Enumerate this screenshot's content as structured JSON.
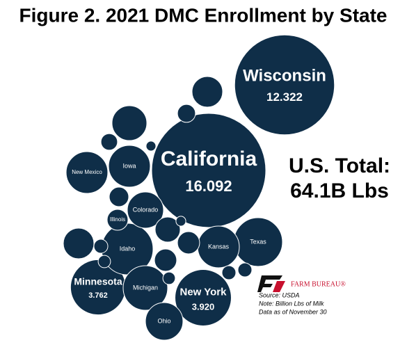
{
  "chart_data": {
    "type": "packed-bubble",
    "title": "Figure 2. 2021 DMC Enrollment by State",
    "color": "#0f2e48",
    "categories": [
      "California",
      "Wisconsin",
      "New York",
      "Minnesota",
      "Idaho",
      "Texas",
      "Michigan",
      "Kansas",
      "Iowa",
      "New Mexico",
      "Ohio",
      "Colorado",
      "Illinois",
      null,
      null,
      null,
      null,
      null,
      null,
      null,
      null,
      null,
      null,
      null,
      null,
      null,
      null,
      null,
      null
    ],
    "values": [
      16.092,
      12.322,
      3.92,
      3.762,
      3.28,
      2.93,
      2.45,
      2.15,
      2.15,
      2.15,
      1.74,
      1.62,
      0.54,
      1.16,
      1.5,
      0.4,
      0.34,
      0.12,
      0.47,
      1.16,
      0.78,
      0.61,
      0.24,
      0.61,
      0.19,
      0.24,
      0.24,
      0.12,
      0.19
    ],
    "value_labels": [
      "16.092",
      "12.322",
      "3.920",
      "3.762",
      null,
      null,
      null,
      null,
      null,
      null,
      null,
      null,
      null,
      null,
      null,
      null,
      null,
      null,
      null,
      null,
      null,
      null,
      null,
      null,
      null,
      null,
      null,
      null,
      null
    ],
    "annotations": [
      "U.S. Total:",
      "64.1B Lbs"
    ],
    "logo_text": "FARM BUREAU®",
    "source": [
      "Source:  USDA",
      "Note: Billion Lbs of Milk",
      "Data as of November 30"
    ]
  }
}
